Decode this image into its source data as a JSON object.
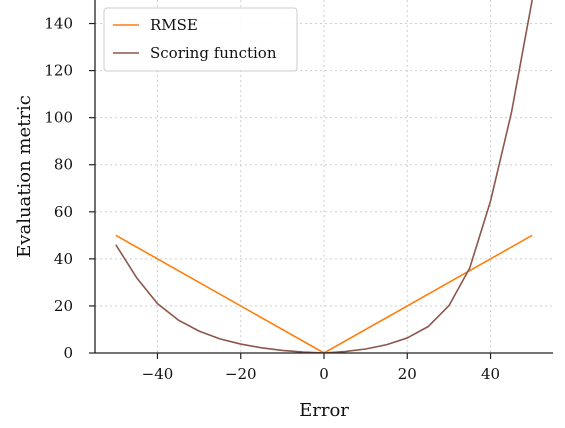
{
  "chart_data": {
    "type": "line",
    "xlabel": "Error",
    "ylabel": "Evaluation metric",
    "xlim": [
      -55,
      55
    ],
    "ylim": [
      0,
      150
    ],
    "grid": true,
    "legend_position": "top-left",
    "x_ticks": [
      {
        "value": -40,
        "label": "−40"
      },
      {
        "value": -20,
        "label": "−20"
      },
      {
        "value": 0,
        "label": "0"
      },
      {
        "value": 20,
        "label": "20"
      },
      {
        "value": 40,
        "label": "40"
      }
    ],
    "y_ticks": [
      {
        "value": 0,
        "label": "0"
      },
      {
        "value": 20,
        "label": "20"
      },
      {
        "value": 40,
        "label": "40"
      },
      {
        "value": 60,
        "label": "60"
      },
      {
        "value": 80,
        "label": "80"
      },
      {
        "value": 100,
        "label": "100"
      },
      {
        "value": 120,
        "label": "120"
      },
      {
        "value": 140,
        "label": "140"
      }
    ],
    "series": [
      {
        "name": "RMSE",
        "color": "#ff7f0e",
        "x": [
          -50,
          0,
          50
        ],
        "y": [
          50,
          0,
          50
        ]
      },
      {
        "name": "Scoring function",
        "color": "#8c564b",
        "x": [
          -50,
          -45,
          -40,
          -35,
          -30,
          -25,
          -20,
          -15,
          -10,
          -5,
          0,
          5,
          10,
          15,
          20,
          25,
          30,
          35,
          40,
          45,
          50
        ],
        "y": [
          46,
          32,
          21,
          14,
          9.3,
          6.0,
          3.8,
          2.2,
          1.1,
          0.4,
          0,
          0.6,
          1.7,
          3.5,
          6.4,
          11.2,
          20.1,
          36.1,
          64.6,
          102,
          150
        ]
      }
    ]
  }
}
